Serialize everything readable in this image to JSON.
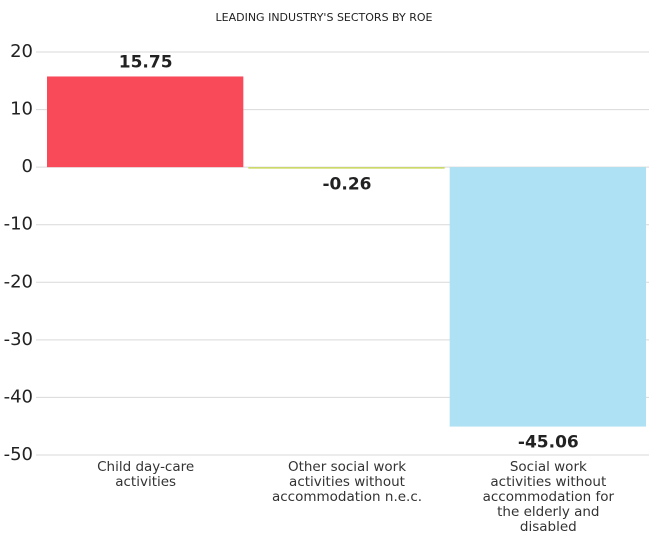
{
  "chart_data": {
    "type": "bar",
    "title": "LEADING INDUSTRY'S SECTORS BY ROE",
    "categories": [
      "Child day-care\nactivities",
      "Other social work\nactivities without\naccommodation n.e.c.",
      "Social work\nactivities without\naccommodation for\nthe elderly and\ndisabled"
    ],
    "values": [
      15.75,
      -0.26,
      -45.06
    ],
    "colors": [
      "#f94a5a",
      "#c9d95a",
      "#ade1f3"
    ],
    "ylim": [
      -50,
      20
    ],
    "yticks": [
      20,
      10,
      0,
      -10,
      -20,
      -30,
      -40,
      -50
    ],
    "grid": true
  }
}
